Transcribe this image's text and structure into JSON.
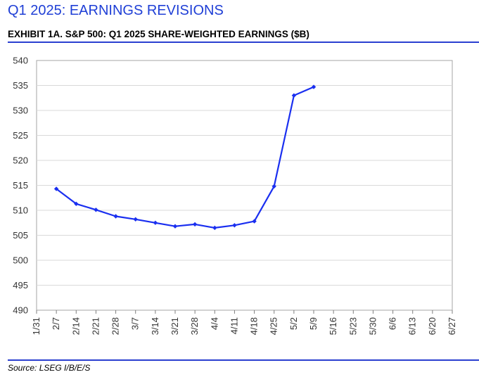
{
  "header": {
    "heading": "Q1 2025: EARNINGS REVISIONS",
    "exhibit_title": "EXHIBIT 1A.  S&P 500: Q1 2025 SHARE-WEIGHTED EARNINGS ($B)"
  },
  "footer": {
    "source": "Source: LSEG I/B/E/S"
  },
  "colors": {
    "accent": "#2a3fd0",
    "series": "#1a2ff0",
    "grid": "#d9d9d9"
  },
  "chart_data": {
    "type": "line",
    "title": "",
    "xlabel": "",
    "ylabel": "",
    "x": [
      "1/31",
      "2/7",
      "2/14",
      "2/21",
      "2/28",
      "3/7",
      "3/14",
      "3/21",
      "3/28",
      "4/4",
      "4/11",
      "4/18",
      "4/25",
      "5/2",
      "5/9",
      "5/16",
      "5/23",
      "5/30",
      "6/6",
      "6/13",
      "6/20",
      "6/27"
    ],
    "ylim": [
      490,
      540
    ],
    "yticks": [
      490,
      495,
      500,
      505,
      510,
      515,
      520,
      525,
      530,
      535,
      540
    ],
    "grid": "horizontal",
    "legend": "none",
    "series": [
      {
        "values": [
          null,
          514.3,
          511.3,
          510.1,
          508.8,
          508.2,
          507.5,
          506.8,
          507.2,
          506.5,
          507.0,
          507.8,
          514.8,
          533.0,
          534.7,
          null,
          null,
          null,
          null,
          null,
          null,
          null
        ]
      }
    ]
  }
}
